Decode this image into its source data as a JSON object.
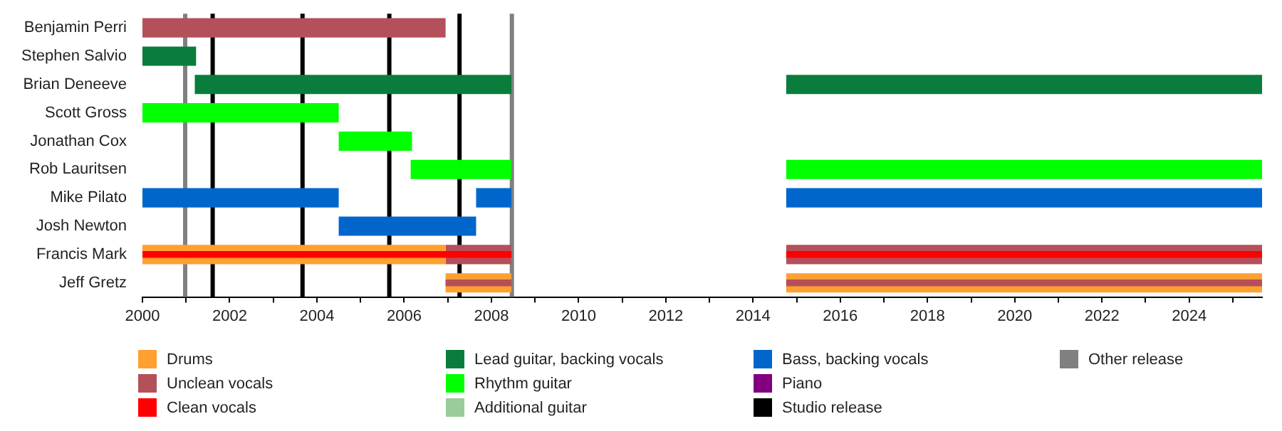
{
  "chart_data": {
    "type": "bar",
    "orientation": "horizontal",
    "categories": [
      "Benjamin Perri",
      "Stephen Salvio",
      "Brian Deneeve",
      "Scott Gross",
      "Jonathan Cox",
      "Rob Lauritsen",
      "Mike Pilato",
      "Josh Newton",
      "Francis Mark",
      "Jeff Gretz"
    ],
    "series": [
      {
        "name": "Drums",
        "color": "#ffa030",
        "values": [
          null,
          null,
          null,
          null,
          null,
          null,
          null,
          null,
          6.95,
          1.51
        ],
        "base": [
          null,
          null,
          null,
          null,
          null,
          null,
          null,
          null,
          2000,
          2006.95
        ]
      },
      {
        "color": "#ffa030",
        "values": [
          null,
          null,
          null,
          null,
          null,
          null,
          null,
          null,
          null,
          10.91
        ],
        "base": [
          null,
          null,
          null,
          null,
          null,
          null,
          null,
          null,
          null,
          2014.76
        ]
      },
      {
        "name": "Unclean vocals",
        "color": "#b4505a",
        "values": [
          6.95,
          null,
          null,
          null,
          null,
          null,
          null,
          null,
          1.51,
          1.51
        ],
        "base": [
          2000,
          null,
          null,
          null,
          null,
          null,
          null,
          null,
          2006.95,
          2006.95
        ]
      },
      {
        "color": "#b4505a",
        "values": [
          null,
          null,
          null,
          null,
          null,
          null,
          null,
          null,
          10.91,
          10.91
        ],
        "base": [
          null,
          null,
          null,
          null,
          null,
          null,
          null,
          null,
          2014.76,
          2014.76
        ]
      },
      {
        "name": "Clean vocals",
        "color": "#ff0000",
        "values": [
          null,
          null,
          null,
          null,
          null,
          null,
          null,
          null,
          8.46,
          null
        ],
        "base": [
          null,
          null,
          null,
          null,
          null,
          null,
          null,
          null,
          2000,
          null
        ]
      },
      {
        "color": "#ff0000",
        "values": [
          null,
          null,
          null,
          null,
          null,
          null,
          null,
          null,
          10.91,
          null
        ],
        "base": [
          null,
          null,
          null,
          null,
          null,
          null,
          null,
          null,
          2014.76,
          null
        ]
      },
      {
        "name": "Lead guitar, backing vocals",
        "color": "#0a7d3c",
        "values": [
          null,
          1.23,
          7.26,
          null,
          null,
          null,
          null,
          null,
          null,
          null
        ],
        "base": [
          null,
          2000,
          2001.2,
          null,
          null,
          null,
          null,
          null,
          null,
          null
        ]
      },
      {
        "color": "#0a7d3c",
        "values": [
          null,
          null,
          10.91,
          null,
          null,
          null,
          null,
          null,
          null,
          null
        ],
        "base": [
          null,
          null,
          2014.76,
          null,
          null,
          null,
          null,
          null,
          null,
          null
        ]
      },
      {
        "name": "Rhythm guitar",
        "color": "#00ff00",
        "values": [
          null,
          null,
          null,
          4.5,
          1.68,
          2.31,
          null,
          null,
          null,
          null
        ],
        "base": [
          null,
          null,
          null,
          2000,
          2004.5,
          2006.15,
          null,
          null,
          null,
          null
        ]
      },
      {
        "color": "#00ff00",
        "values": [
          null,
          null,
          null,
          null,
          null,
          10.91,
          null,
          null,
          null,
          null
        ],
        "base": [
          null,
          null,
          null,
          null,
          null,
          2014.76,
          null,
          null,
          null,
          null
        ]
      },
      {
        "name": "Additional guitar",
        "color": "#99cc99",
        "values": [
          null,
          null,
          null,
          null,
          null,
          null,
          null,
          null,
          null,
          null
        ]
      },
      {
        "name": "Bass, backing vocals",
        "color": "#0066cc",
        "values": [
          null,
          null,
          null,
          null,
          null,
          null,
          4.5,
          3.15,
          null,
          null
        ],
        "base": [
          null,
          null,
          null,
          null,
          null,
          null,
          2000,
          2004.5,
          null,
          null
        ]
      },
      {
        "color": "#0066cc",
        "values": [
          null,
          null,
          null,
          null,
          null,
          null,
          0.81,
          null,
          null,
          null
        ],
        "base": [
          null,
          null,
          null,
          null,
          null,
          null,
          2007.65,
          null,
          null,
          null
        ]
      },
      {
        "color": "#0066cc",
        "values": [
          null,
          null,
          null,
          null,
          null,
          null,
          10.91,
          null,
          null,
          null
        ],
        "base": [
          null,
          null,
          null,
          null,
          null,
          null,
          2014.76,
          null,
          null,
          null
        ]
      },
      {
        "name": "Piano",
        "color": "#800080",
        "values": [
          null,
          null,
          null,
          null,
          null,
          null,
          null,
          null,
          null,
          null
        ]
      }
    ],
    "xlim": [
      2000,
      2025.67
    ],
    "xticks": [
      2000,
      {
        "value": 2001,
        "label": null
      },
      2002,
      {
        "value": 2003,
        "label": null
      },
      2004,
      {
        "value": 2005,
        "label": null
      },
      2006,
      {
        "value": 2007,
        "label": null
      },
      2008,
      {
        "value": 2009,
        "label": null
      },
      2010,
      {
        "value": 2011,
        "label": null
      },
      2012,
      {
        "value": 2013,
        "label": null
      },
      2014,
      {
        "value": 2015,
        "label": null
      },
      2016,
      {
        "value": 2017,
        "label": null
      },
      2018,
      {
        "value": 2019,
        "label": null
      },
      2020,
      {
        "value": 2021,
        "label": null
      },
      2022,
      {
        "value": 2023,
        "label": null
      },
      2024,
      {
        "value": 2025,
        "label": null
      }
    ],
    "ref_lines": [
      {
        "axis": "x",
        "value": 2001.61,
        "label": "Studio release",
        "color": "#000000"
      },
      {
        "axis": "x",
        "value": 2003.67,
        "color": "#000000"
      },
      {
        "axis": "x",
        "value": 2005.66,
        "color": "#000000"
      },
      {
        "axis": "x",
        "value": 2007.27,
        "color": "#000000"
      },
      {
        "axis": "x",
        "value": 2000.98,
        "label": "Other release",
        "color": "#808080"
      },
      {
        "axis": "x",
        "value": 2008.47,
        "color": "#808080"
      }
    ],
    "grid": false,
    "legend": "bottom"
  }
}
